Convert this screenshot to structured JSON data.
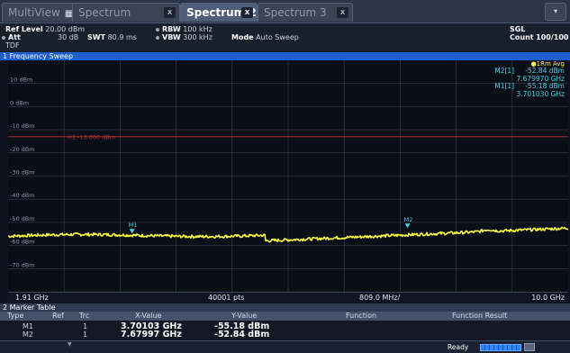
{
  "tabs": [
    {
      "label": "MultiView",
      "icon": "grid-icon",
      "active": false
    },
    {
      "label": "Spectrum",
      "active": false
    },
    {
      "label": "Spectrum 2",
      "active": true
    },
    {
      "label": "Spectrum 3",
      "active": false
    }
  ],
  "tab_close_glyph": "x",
  "header": {
    "ref_level_label": "Ref Level",
    "ref_level_value": "20.00 dBm",
    "att_label": "Att",
    "att_value": "30 dB",
    "swt_label": "SWT",
    "swt_value": "80.9 ms",
    "rbw_label": "RBW",
    "rbw_value": "100 kHz",
    "vbw_label": "VBW",
    "vbw_value": "300 kHz",
    "mode_label": "Mode",
    "mode_value": "Auto Sweep",
    "tdf_label": "TDF",
    "sgl_label": "SGL",
    "count_label": "Count",
    "count_value": "100/100"
  },
  "window_title": "1 Frequency Sweep",
  "trace_legend": "1Rm Avg",
  "marker_readout": [
    {
      "name": "M2[1]",
      "level": "-52.84 dBm",
      "freq": "7.679970 GHz"
    },
    {
      "name": "M1[1]",
      "level": "-55.18 dBm",
      "freq": "3.701030 GHz"
    }
  ],
  "y_axis": {
    "labels": [
      "10 dBm",
      "0 dBm",
      "-10 dBm",
      "-20 dBm",
      "-30 dBm",
      "-40 dBm",
      "-50 dBm",
      "-60 dBm",
      "-70 dBm"
    ],
    "levels": [
      10,
      0,
      -10,
      -20,
      -30,
      -40,
      -50,
      -60,
      -70
    ],
    "ref_level": 20,
    "bottom_level": -80
  },
  "limit_line": {
    "label": "H1 -13.000 dBm",
    "level": -13
  },
  "markers_on_plot": [
    {
      "label": "M1",
      "freq_ghz": 3.70103,
      "level": -55.18
    },
    {
      "label": "M2",
      "freq_ghz": 7.67997,
      "level": -52.84
    }
  ],
  "x_axis": {
    "start": "1.91 GHz",
    "points": "40001 pts",
    "span_per_div": "809.0 MHz/",
    "stop": "10.0 GHz",
    "start_ghz": 1.91,
    "stop_ghz": 10.0
  },
  "trace": {
    "color": "#ffff3c",
    "step_at_ghz": 5.62,
    "level_before_step": -56.0,
    "level_after_step": -58.0,
    "level_at_stop": -52.5
  },
  "marker_table": {
    "title": "2 Marker Table",
    "columns": [
      "Type",
      "Ref",
      "Trc",
      "X-Value",
      "Y-Value",
      "Function",
      "Function Result"
    ],
    "rows": [
      {
        "type": "M1",
        "ref": "",
        "trc": "1",
        "x": "3.70103 GHz",
        "y": "-55.18 dBm",
        "function": "",
        "result": ""
      },
      {
        "type": "M2",
        "ref": "",
        "trc": "1",
        "x": "7.67997 GHz",
        "y": "-52.84 dBm",
        "function": "",
        "result": ""
      }
    ]
  },
  "status": {
    "text": "Ready"
  },
  "colors": {
    "accent": "#1e5fcf",
    "trace": "#ffff3c",
    "limit": "#c0303a",
    "marker_text": "#48d0e6"
  }
}
